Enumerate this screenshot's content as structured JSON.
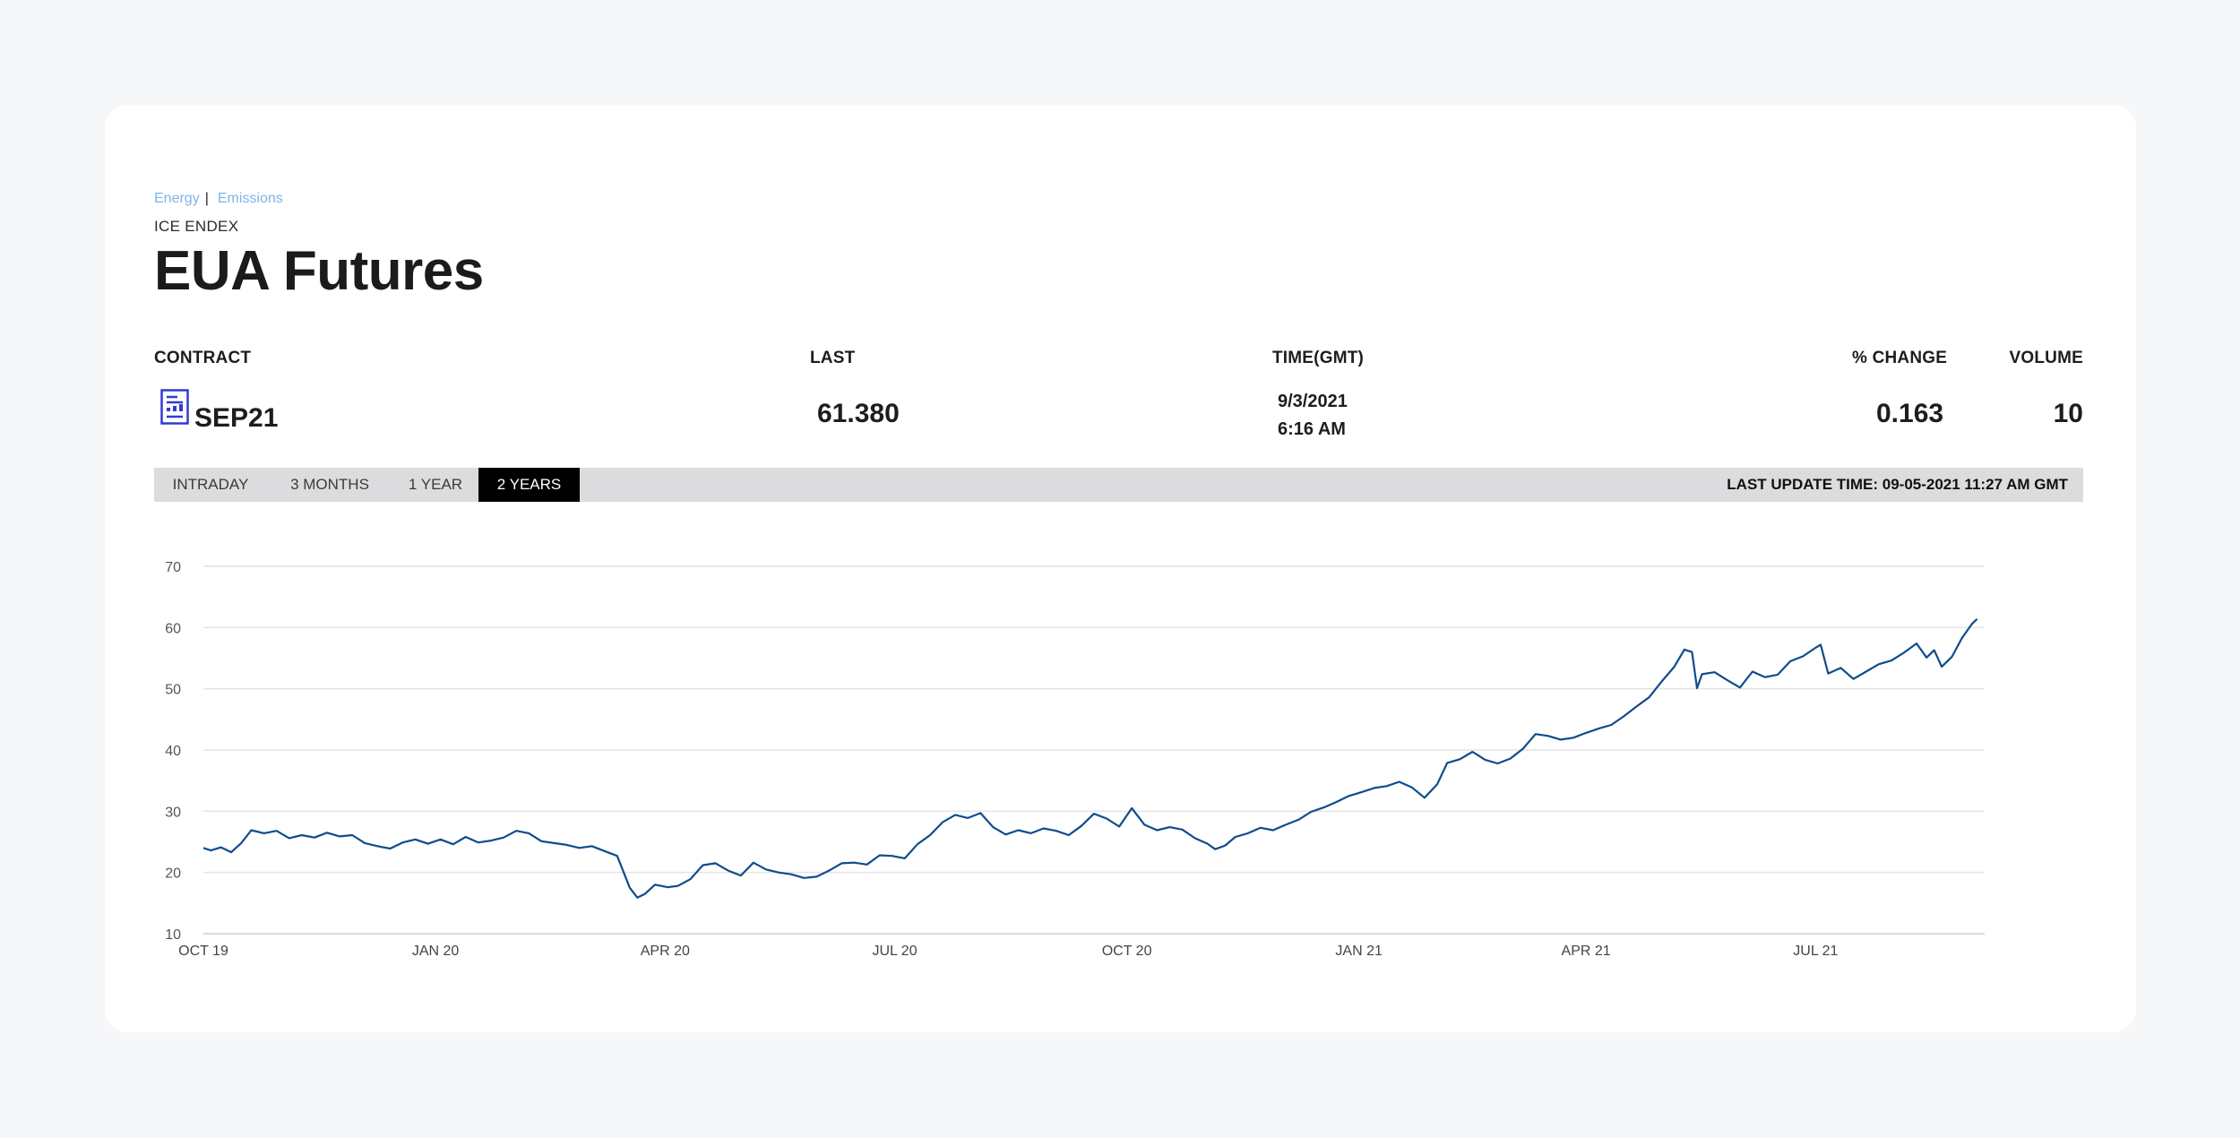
{
  "breadcrumb": {
    "item1": "Energy",
    "separator": "|",
    "item2": "Emissions"
  },
  "exchange": "ICE ENDEX",
  "title": "EUA Futures",
  "table": {
    "headers": {
      "contract": "CONTRACT",
      "last": "LAST",
      "time": "TIME(GMT)",
      "change": "% CHANGE",
      "volume": "VOLUME"
    },
    "row": {
      "contract": "SEP21",
      "last": "61.380",
      "date": "9/3/2021",
      "time": "6:16 AM",
      "change": "0.163",
      "volume": "10"
    }
  },
  "tabs": [
    "INTRADAY",
    "3 MONTHS",
    "1 YEAR",
    "2 YEARS"
  ],
  "active_tab": "2 YEARS",
  "last_update": "LAST UPDATE TIME: 09-05-2021 11:27 AM GMT",
  "icons": {
    "contract": "document-chart-icon"
  },
  "colors": {
    "line": "#0f4c8c",
    "link": "#7fb4e6",
    "tab_bar": "#dcdcde",
    "active_tab": "#000000"
  },
  "chart_data": {
    "type": "line",
    "ylim": [
      10,
      70
    ],
    "yticks": [
      10,
      20,
      30,
      40,
      50,
      60,
      70
    ],
    "xlim": [
      "2019-10-01",
      "2021-09-06"
    ],
    "xticks": [
      {
        "date": "2019-10-01",
        "label": "OCT 19"
      },
      {
        "date": "2020-01-01",
        "label": "JAN 20"
      },
      {
        "date": "2020-04-01",
        "label": "APR 20"
      },
      {
        "date": "2020-07-01",
        "label": "JUL 20"
      },
      {
        "date": "2020-10-01",
        "label": "OCT 20"
      },
      {
        "date": "2021-01-01",
        "label": "JAN 21"
      },
      {
        "date": "2021-04-01",
        "label": "APR 21"
      },
      {
        "date": "2021-07-01",
        "label": "JUL 21"
      }
    ],
    "grid": true,
    "series": [
      {
        "points": [
          [
            "2019-10-01",
            24.0
          ],
          [
            "2019-10-04",
            23.6
          ],
          [
            "2019-10-08",
            24.1
          ],
          [
            "2019-10-12",
            23.3
          ],
          [
            "2019-10-16",
            24.8
          ],
          [
            "2019-10-20",
            26.9
          ],
          [
            "2019-10-25",
            26.4
          ],
          [
            "2019-10-30",
            26.8
          ],
          [
            "2019-11-04",
            25.6
          ],
          [
            "2019-11-09",
            26.1
          ],
          [
            "2019-11-14",
            25.7
          ],
          [
            "2019-11-19",
            26.5
          ],
          [
            "2019-11-24",
            25.9
          ],
          [
            "2019-11-29",
            26.1
          ],
          [
            "2019-12-04",
            24.8
          ],
          [
            "2019-12-09",
            24.3
          ],
          [
            "2019-12-14",
            23.9
          ],
          [
            "2019-12-19",
            24.9
          ],
          [
            "2019-12-24",
            25.4
          ],
          [
            "2019-12-29",
            24.7
          ],
          [
            "2020-01-03",
            25.4
          ],
          [
            "2020-01-08",
            24.6
          ],
          [
            "2020-01-13",
            25.8
          ],
          [
            "2020-01-18",
            24.9
          ],
          [
            "2020-01-23",
            25.2
          ],
          [
            "2020-01-28",
            25.7
          ],
          [
            "2020-02-02",
            26.8
          ],
          [
            "2020-02-07",
            26.4
          ],
          [
            "2020-02-12",
            25.1
          ],
          [
            "2020-02-17",
            24.8
          ],
          [
            "2020-02-22",
            24.5
          ],
          [
            "2020-02-27",
            24.0
          ],
          [
            "2020-03-03",
            24.3
          ],
          [
            "2020-03-08",
            23.5
          ],
          [
            "2020-03-13",
            22.7
          ],
          [
            "2020-03-18",
            17.5
          ],
          [
            "2020-03-21",
            15.9
          ],
          [
            "2020-03-24",
            16.5
          ],
          [
            "2020-03-28",
            18.0
          ],
          [
            "2020-04-02",
            17.6
          ],
          [
            "2020-04-06",
            17.8
          ],
          [
            "2020-04-11",
            18.9
          ],
          [
            "2020-04-16",
            21.2
          ],
          [
            "2020-04-21",
            21.5
          ],
          [
            "2020-04-26",
            20.3
          ],
          [
            "2020-05-01",
            19.5
          ],
          [
            "2020-05-06",
            21.6
          ],
          [
            "2020-05-11",
            20.5
          ],
          [
            "2020-05-16",
            20.0
          ],
          [
            "2020-05-21",
            19.7
          ],
          [
            "2020-05-26",
            19.1
          ],
          [
            "2020-05-31",
            19.3
          ],
          [
            "2020-06-05",
            20.3
          ],
          [
            "2020-06-10",
            21.5
          ],
          [
            "2020-06-15",
            21.6
          ],
          [
            "2020-06-20",
            21.3
          ],
          [
            "2020-06-25",
            22.8
          ],
          [
            "2020-06-30",
            22.7
          ],
          [
            "2020-07-05",
            22.3
          ],
          [
            "2020-07-10",
            24.6
          ],
          [
            "2020-07-15",
            26.1
          ],
          [
            "2020-07-20",
            28.2
          ],
          [
            "2020-07-25",
            29.4
          ],
          [
            "2020-07-30",
            28.9
          ],
          [
            "2020-08-04",
            29.7
          ],
          [
            "2020-08-09",
            27.4
          ],
          [
            "2020-08-14",
            26.2
          ],
          [
            "2020-08-19",
            26.9
          ],
          [
            "2020-08-24",
            26.4
          ],
          [
            "2020-08-29",
            27.2
          ],
          [
            "2020-09-03",
            26.8
          ],
          [
            "2020-09-08",
            26.1
          ],
          [
            "2020-09-13",
            27.6
          ],
          [
            "2020-09-18",
            29.6
          ],
          [
            "2020-09-23",
            28.8
          ],
          [
            "2020-09-28",
            27.5
          ],
          [
            "2020-10-03",
            30.5
          ],
          [
            "2020-10-08",
            27.8
          ],
          [
            "2020-10-13",
            26.9
          ],
          [
            "2020-10-18",
            27.4
          ],
          [
            "2020-10-23",
            27.0
          ],
          [
            "2020-10-28",
            25.6
          ],
          [
            "2020-11-02",
            24.7
          ],
          [
            "2020-11-05",
            23.8
          ],
          [
            "2020-11-09",
            24.4
          ],
          [
            "2020-11-13",
            25.8
          ],
          [
            "2020-11-18",
            26.4
          ],
          [
            "2020-11-23",
            27.3
          ],
          [
            "2020-11-28",
            26.9
          ],
          [
            "2020-12-03",
            27.8
          ],
          [
            "2020-12-08",
            28.6
          ],
          [
            "2020-12-13",
            29.9
          ],
          [
            "2020-12-18",
            30.6
          ],
          [
            "2020-12-23",
            31.5
          ],
          [
            "2020-12-28",
            32.5
          ],
          [
            "2021-01-02",
            33.1
          ],
          [
            "2021-01-07",
            33.8
          ],
          [
            "2021-01-12",
            34.1
          ],
          [
            "2021-01-17",
            34.8
          ],
          [
            "2021-01-22",
            33.9
          ],
          [
            "2021-01-27",
            32.2
          ],
          [
            "2021-02-01",
            34.4
          ],
          [
            "2021-02-05",
            37.9
          ],
          [
            "2021-02-10",
            38.5
          ],
          [
            "2021-02-15",
            39.7
          ],
          [
            "2021-02-20",
            38.4
          ],
          [
            "2021-02-25",
            37.8
          ],
          [
            "2021-03-02",
            38.6
          ],
          [
            "2021-03-07",
            40.2
          ],
          [
            "2021-03-12",
            42.6
          ],
          [
            "2021-03-17",
            42.3
          ],
          [
            "2021-03-22",
            41.7
          ],
          [
            "2021-03-27",
            42.0
          ],
          [
            "2021-04-01",
            42.8
          ],
          [
            "2021-04-06",
            43.5
          ],
          [
            "2021-04-11",
            44.1
          ],
          [
            "2021-04-16",
            45.5
          ],
          [
            "2021-04-21",
            47.1
          ],
          [
            "2021-04-26",
            48.6
          ],
          [
            "2021-05-01",
            51.2
          ],
          [
            "2021-05-06",
            53.6
          ],
          [
            "2021-05-10",
            56.4
          ],
          [
            "2021-05-13",
            56.0
          ],
          [
            "2021-05-15",
            50.1
          ],
          [
            "2021-05-17",
            52.4
          ],
          [
            "2021-05-22",
            52.7
          ],
          [
            "2021-05-27",
            51.4
          ],
          [
            "2021-06-01",
            50.2
          ],
          [
            "2021-06-06",
            52.8
          ],
          [
            "2021-06-11",
            51.9
          ],
          [
            "2021-06-16",
            52.3
          ],
          [
            "2021-06-21",
            54.5
          ],
          [
            "2021-06-26",
            55.3
          ],
          [
            "2021-07-01",
            56.7
          ],
          [
            "2021-07-03",
            57.2
          ],
          [
            "2021-07-06",
            52.5
          ],
          [
            "2021-07-11",
            53.4
          ],
          [
            "2021-07-16",
            51.6
          ],
          [
            "2021-07-21",
            52.8
          ],
          [
            "2021-07-26",
            54.0
          ],
          [
            "2021-07-31",
            54.6
          ],
          [
            "2021-08-05",
            55.9
          ],
          [
            "2021-08-10",
            57.4
          ],
          [
            "2021-08-14",
            55.1
          ],
          [
            "2021-08-17",
            56.3
          ],
          [
            "2021-08-20",
            53.6
          ],
          [
            "2021-08-24",
            55.2
          ],
          [
            "2021-08-28",
            58.3
          ],
          [
            "2021-09-01",
            60.6
          ],
          [
            "2021-09-03",
            61.4
          ]
        ]
      }
    ]
  }
}
